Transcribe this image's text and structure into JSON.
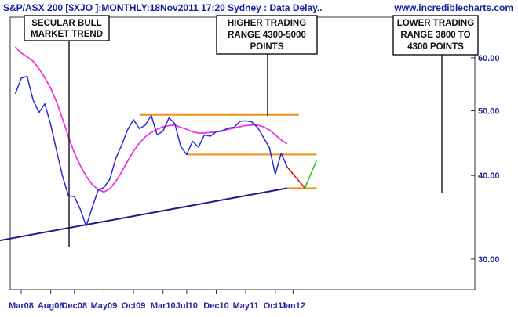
{
  "header": {
    "title": "S&P/ASX 200 [$XJO ]:MONTHLY:18Nov2011 17:20 Sydney : Data Delay..",
    "site": "www.incrediblecharts.com"
  },
  "colors": {
    "price": "#2b2bd0",
    "moving_average": "#e83ae0",
    "trendline": "#1c1c8a",
    "range_lines": "#f0901a",
    "projection_down": "#e01010",
    "projection_up": "#20d020",
    "axis_text": "#2828a0"
  },
  "annotations": {
    "secular": [
      "SECULAR BULL",
      "MARKET TREND"
    ],
    "higher": [
      "HIGHER TRADING",
      "RANGE 4300-5000",
      "POINTS"
    ],
    "lower": [
      "LOWER TRADING",
      "RANGE 3800 TO",
      "4300 POINTS"
    ]
  },
  "chart_data": {
    "type": "line",
    "title": "S&P/ASX 200 [$XJO ]:MONTHLY:18Nov2011 17:20 Sydney : Data Delay..",
    "x_ticks": [
      "Mar08",
      "Aug08",
      "Dec08",
      "May09",
      "Oct09",
      "Mar10",
      "Jul10",
      "Dec10",
      "May11",
      "Oct11",
      "Jan12"
    ],
    "y_ticks": [
      {
        "value": 3000,
        "label": "30.00"
      },
      {
        "value": 4000,
        "label": "40.00"
      },
      {
        "value": 5000,
        "label": "50.00"
      },
      {
        "value": 6000,
        "label": "60.00"
      }
    ],
    "y_scale": "log",
    "ylim": [
      2700,
      6900
    ],
    "grid": false,
    "series": [
      {
        "kind": "price",
        "points": [
          [
            "2008-02",
            5300
          ],
          [
            "2008-03",
            5590
          ],
          [
            "2008-04",
            5630
          ],
          [
            "2008-05",
            5190
          ],
          [
            "2008-06",
            4970
          ],
          [
            "2008-07",
            5120
          ],
          [
            "2008-08",
            4760
          ],
          [
            "2008-09",
            4350
          ],
          [
            "2008-10",
            3990
          ],
          [
            "2008-11",
            3730
          ],
          [
            "2008-12",
            3720
          ],
          [
            "2009-01",
            3560
          ],
          [
            "2009-02",
            3360
          ],
          [
            "2009-03",
            3580
          ],
          [
            "2009-04",
            3800
          ],
          [
            "2009-05",
            3840
          ],
          [
            "2009-06",
            3950
          ],
          [
            "2009-07",
            4240
          ],
          [
            "2009-08",
            4440
          ],
          [
            "2009-09",
            4680
          ],
          [
            "2009-10",
            4850
          ],
          [
            "2009-11",
            4700
          ],
          [
            "2009-12",
            4760
          ],
          [
            "2010-01",
            4920
          ],
          [
            "2010-02",
            4600
          ],
          [
            "2010-03",
            4660
          ],
          [
            "2010-04",
            4880
          ],
          [
            "2010-05",
            4780
          ],
          [
            "2010-06",
            4420
          ],
          [
            "2010-07",
            4300
          ],
          [
            "2010-08",
            4500
          ],
          [
            "2010-09",
            4410
          ],
          [
            "2010-10",
            4600
          ],
          [
            "2010-11",
            4580
          ],
          [
            "2010-12",
            4650
          ],
          [
            "2011-01",
            4660
          ],
          [
            "2011-02",
            4710
          ],
          [
            "2011-03",
            4720
          ],
          [
            "2011-04",
            4820
          ],
          [
            "2011-05",
            4830
          ],
          [
            "2011-06",
            4810
          ],
          [
            "2011-07",
            4720
          ],
          [
            "2011-08",
            4560
          ],
          [
            "2011-09",
            4400
          ],
          [
            "2011-10",
            4020
          ],
          [
            "2011-11",
            4320
          ],
          [
            "2011-12",
            4120
          ]
        ]
      },
      {
        "kind": "moving_average",
        "points": [
          [
            "2008-02",
            6230
          ],
          [
            "2008-03",
            6100
          ],
          [
            "2008-04",
            6020
          ],
          [
            "2008-05",
            5930
          ],
          [
            "2008-06",
            5780
          ],
          [
            "2008-07",
            5600
          ],
          [
            "2008-08",
            5400
          ],
          [
            "2008-09",
            5150
          ],
          [
            "2008-10",
            4860
          ],
          [
            "2008-11",
            4570
          ],
          [
            "2008-12",
            4320
          ],
          [
            "2009-01",
            4140
          ],
          [
            "2009-02",
            3990
          ],
          [
            "2009-03",
            3880
          ],
          [
            "2009-04",
            3810
          ],
          [
            "2009-05",
            3780
          ],
          [
            "2009-06",
            3820
          ],
          [
            "2009-07",
            3920
          ],
          [
            "2009-08",
            4050
          ],
          [
            "2009-09",
            4200
          ],
          [
            "2009-10",
            4350
          ],
          [
            "2009-11",
            4470
          ],
          [
            "2009-12",
            4570
          ],
          [
            "2010-01",
            4640
          ],
          [
            "2010-02",
            4690
          ],
          [
            "2010-03",
            4730
          ],
          [
            "2010-04",
            4750
          ],
          [
            "2010-05",
            4760
          ],
          [
            "2010-06",
            4720
          ],
          [
            "2010-07",
            4690
          ],
          [
            "2010-08",
            4650
          ],
          [
            "2010-09",
            4630
          ],
          [
            "2010-10",
            4630
          ],
          [
            "2010-11",
            4640
          ],
          [
            "2010-12",
            4650
          ],
          [
            "2011-01",
            4670
          ],
          [
            "2011-02",
            4690
          ],
          [
            "2011-03",
            4710
          ],
          [
            "2011-04",
            4730
          ],
          [
            "2011-05",
            4750
          ],
          [
            "2011-06",
            4760
          ],
          [
            "2011-07",
            4760
          ],
          [
            "2011-08",
            4730
          ],
          [
            "2011-09",
            4680
          ],
          [
            "2011-10",
            4600
          ],
          [
            "2011-11",
            4520
          ],
          [
            "2011-12",
            4460
          ]
        ]
      }
    ],
    "lines": [
      {
        "kind": "trendline",
        "from": [
          "2007-09",
          3170
        ],
        "to": [
          "2011-12",
          3830
        ]
      },
      {
        "kind": "range",
        "from": [
          "2009-11",
          4930
        ],
        "to": [
          "2012-02",
          4930
        ]
      },
      {
        "kind": "range",
        "from": [
          "2010-07",
          4300
        ],
        "to": [
          "2012-05",
          4300
        ]
      },
      {
        "kind": "range",
        "from": [
          "2011-12",
          3830
        ],
        "to": [
          "2012-05",
          3830
        ]
      },
      {
        "kind": "projection_down",
        "from": [
          "2011-12",
          4120
        ],
        "to": [
          "2012-03",
          3830
        ]
      },
      {
        "kind": "projection_up",
        "from": [
          "2012-03",
          3830
        ],
        "to": [
          "2012-05",
          4220
        ]
      }
    ]
  }
}
